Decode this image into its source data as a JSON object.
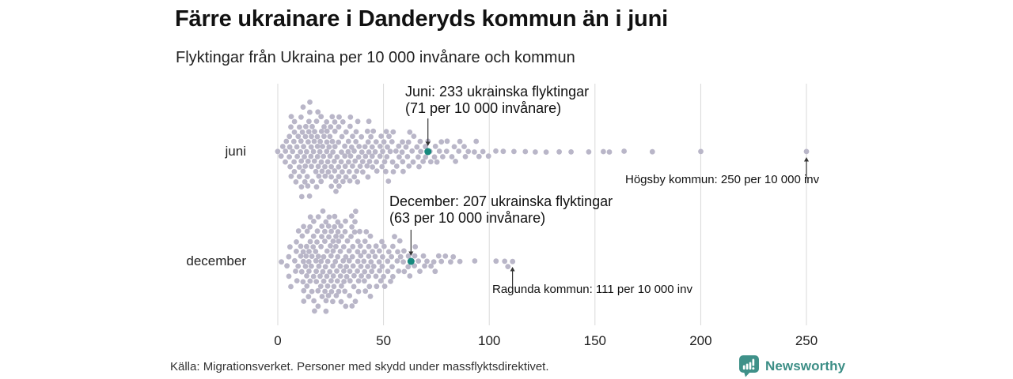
{
  "header": {
    "title": "Färre ukrainare i Danderyds kommun än i juni",
    "subtitle": "Flyktingar från Ukraina per 10 000 invånare och kommun"
  },
  "source_note": "Källa: Migrationsverket. Personer med skydd under massflyktsdirektivet.",
  "branding": {
    "text": "Newsworthy",
    "color": "#3c8e86"
  },
  "colors": {
    "dot": "#b9b6c8",
    "highlight": "#17897e",
    "gridline": "#d9d9d9",
    "arrow": "#333333",
    "text": "#222222"
  },
  "chart_data": {
    "type": "beeswarm",
    "title": "Färre ukrainare i Danderyds kommun än i juni",
    "subtitle": "Flyktingar från Ukraina per 10 000 invånare och kommun",
    "unit": "flyktingar per 10 000 invånare",
    "x_axis": {
      "min": 0,
      "max": 250,
      "ticks": [
        0,
        50,
        100,
        150,
        200,
        250
      ]
    },
    "grid": true,
    "rows": [
      {
        "label": "juni",
        "highlight_value": 71,
        "bins": [
          [
            0,
            5,
            6
          ],
          [
            5,
            10,
            18
          ],
          [
            10,
            15,
            24
          ],
          [
            15,
            20,
            24
          ],
          [
            20,
            25,
            22
          ],
          [
            25,
            30,
            20
          ],
          [
            30,
            35,
            18
          ],
          [
            35,
            40,
            16
          ],
          [
            40,
            45,
            14
          ],
          [
            45,
            50,
            12
          ],
          [
            50,
            55,
            11
          ],
          [
            55,
            60,
            9
          ],
          [
            60,
            65,
            8
          ],
          [
            65,
            70,
            7
          ],
          [
            70,
            75,
            6
          ],
          [
            75,
            80,
            5
          ],
          [
            80,
            85,
            4
          ],
          [
            85,
            90,
            4
          ],
          [
            90,
            95,
            3
          ],
          [
            95,
            100,
            3
          ]
        ],
        "singles": [
          103,
          107,
          112,
          117,
          122,
          127,
          133,
          139,
          147,
          154,
          157,
          164,
          177,
          200,
          250
        ]
      },
      {
        "label": "december",
        "highlight_value": 63,
        "bins": [
          [
            0,
            5,
            2
          ],
          [
            5,
            10,
            10
          ],
          [
            10,
            15,
            20
          ],
          [
            15,
            20,
            26
          ],
          [
            20,
            25,
            28
          ],
          [
            25,
            30,
            26
          ],
          [
            30,
            35,
            24
          ],
          [
            35,
            40,
            20
          ],
          [
            40,
            45,
            16
          ],
          [
            45,
            50,
            13
          ],
          [
            50,
            55,
            11
          ],
          [
            55,
            60,
            8
          ],
          [
            60,
            65,
            7
          ],
          [
            65,
            70,
            5
          ],
          [
            70,
            75,
            4
          ],
          [
            75,
            80,
            3
          ],
          [
            80,
            85,
            2
          ]
        ],
        "singles": [
          86,
          93,
          103,
          107,
          109,
          111
        ]
      }
    ],
    "annotations": [
      {
        "id": "juni-callout",
        "row": "juni",
        "target_value": 71,
        "lines": [
          "Juni: 233 ukrainska flyktingar",
          "(71 per 10 000 invånare)"
        ]
      },
      {
        "id": "december-callout",
        "row": "december",
        "target_value": 63,
        "lines": [
          "December: 207 ukrainska flyktingar",
          "(63 per 10 000 invånare)"
        ]
      },
      {
        "id": "hogsby-callout",
        "row": "juni",
        "target_value": 250,
        "lines": [
          "Högsby kommun: 250 per 10 000 inv"
        ]
      },
      {
        "id": "ragunda-callout",
        "row": "december",
        "target_value": 111,
        "lines": [
          "Ragunda kommun: 111 per 10 000 inv"
        ]
      }
    ]
  }
}
